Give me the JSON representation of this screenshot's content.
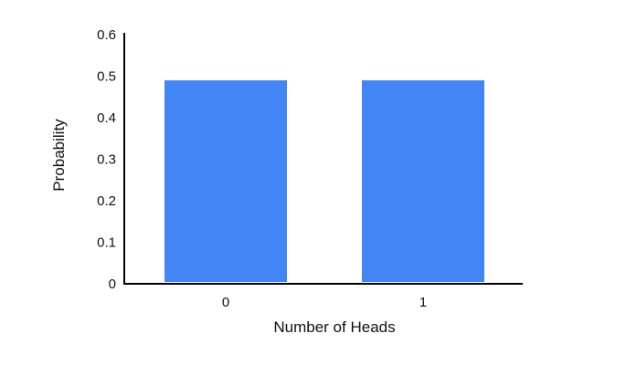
{
  "chart_data": {
    "type": "bar",
    "categories": [
      "0",
      "1"
    ],
    "values": [
      0.49,
      0.49
    ],
    "title": "",
    "xlabel": "Number of Heads",
    "ylabel": "Probability",
    "ylim": [
      0,
      0.6
    ],
    "yticks": [
      "0",
      "0.1",
      "0.2",
      "0.3",
      "0.4",
      "0.5",
      "0.6"
    ],
    "grid": false,
    "legend": "none",
    "bar_color": "#4285f4",
    "axis_color": "#000000"
  }
}
